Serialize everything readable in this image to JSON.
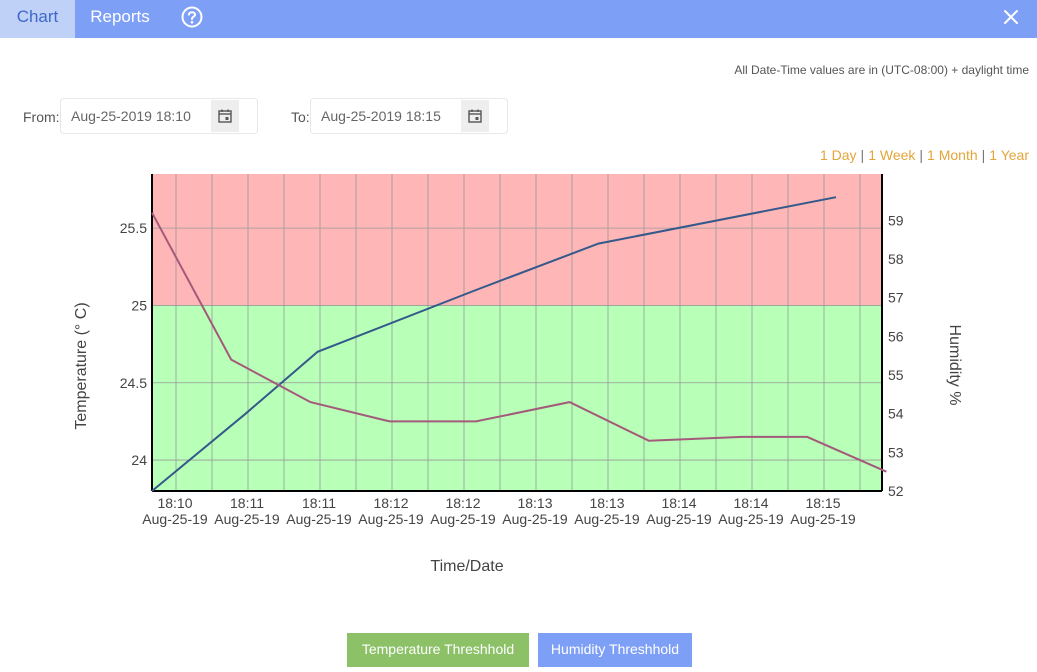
{
  "tabs": [
    {
      "label": "Chart",
      "active": true
    },
    {
      "label": "Reports",
      "active": false
    }
  ],
  "icons": {
    "help": "help-circle-icon",
    "close": "close-icon",
    "calendar": "calendar-icon"
  },
  "timezone_note": "All Date-Time values are in (UTC-08:00) + daylight time",
  "filters": {
    "from_label": "From:",
    "from_value": "Aug-25-2019 18:10",
    "to_label": "To:",
    "to_value": "Aug-25-2019 18:15"
  },
  "range_links": [
    "1 Day",
    "1 Week",
    "1 Month",
    "1 Year"
  ],
  "range_separator": "|",
  "colors": {
    "topbar": "#7e9ff6",
    "active_tab_bg": "#bfd1f7",
    "active_tab_text": "#3f68c9",
    "link": "#e3a53a",
    "threshold_above": "#ffb6b6",
    "threshold_below": "#b8ffb8",
    "temperature_line": "#34598b",
    "humidity_line": "#a45a7a",
    "temp_button": "#8cc168",
    "humidity_button": "#7e9ff6"
  },
  "chart_data": {
    "type": "line",
    "title": "",
    "xlabel": "Time/Date",
    "ylabel": "Temperature (° C)",
    "y2label": "Humidity %",
    "ylim": [
      23.8,
      25.85
    ],
    "y2lim": [
      52,
      60.2
    ],
    "yticks": [
      "24",
      "24.5",
      "25",
      "25.5"
    ],
    "y2ticks": [
      "52",
      "53",
      "54",
      "55",
      "56",
      "57",
      "58",
      "59"
    ],
    "threshold": 25,
    "x_ticks": [
      {
        "time": "18:10",
        "date": "Aug-25-19"
      },
      {
        "time": "18:11",
        "date": "Aug-25-19"
      },
      {
        "time": "18:11",
        "date": "Aug-25-19"
      },
      {
        "time": "18:12",
        "date": "Aug-25-19"
      },
      {
        "time": "18:12",
        "date": "Aug-25-19"
      },
      {
        "time": "18:13",
        "date": "Aug-25-19"
      },
      {
        "time": "18:13",
        "date": "Aug-25-19"
      },
      {
        "time": "18:14",
        "date": "Aug-25-19"
      },
      {
        "time": "18:14",
        "date": "Aug-25-19"
      },
      {
        "time": "18:15",
        "date": "Aug-25-19"
      }
    ],
    "series": [
      {
        "axis": "left",
        "x": [
          0,
          1.3,
          2.3,
          4.5,
          6.2,
          9.5
        ],
        "values": [
          23.8,
          24.3,
          24.7,
          25.1,
          25.4,
          25.7
        ]
      },
      {
        "axis": "right",
        "x": [
          0,
          1.1,
          2.2,
          3.3,
          4.5,
          5.8,
          6.9,
          8.2,
          9.1,
          10.2
        ],
        "values": [
          59.2,
          55.4,
          54.3,
          53.8,
          53.8,
          54.3,
          53.3,
          53.4,
          53.4,
          52.5
        ]
      }
    ]
  },
  "buttons": {
    "temperature": "Temperature Threshhold",
    "humidity": "Humidity Threshhold"
  }
}
